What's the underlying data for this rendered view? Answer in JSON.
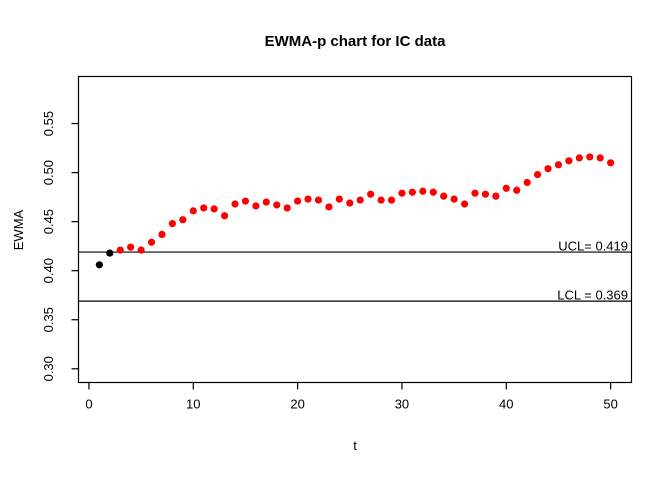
{
  "chart_data": {
    "type": "scatter",
    "title": "EWMA-p chart for IC data",
    "xlabel": "t",
    "ylabel": "EWMA",
    "x": [
      1,
      2,
      3,
      4,
      5,
      6,
      7,
      8,
      9,
      10,
      11,
      12,
      13,
      14,
      15,
      16,
      17,
      18,
      19,
      20,
      21,
      22,
      23,
      24,
      25,
      26,
      27,
      28,
      29,
      30,
      31,
      32,
      33,
      34,
      35,
      36,
      37,
      38,
      39,
      40,
      41,
      42,
      43,
      44,
      45,
      46,
      47,
      48,
      49,
      50
    ],
    "y": [
      0.406,
      0.418,
      0.421,
      0.424,
      0.421,
      0.429,
      0.437,
      0.448,
      0.452,
      0.461,
      0.464,
      0.463,
      0.456,
      0.468,
      0.471,
      0.466,
      0.47,
      0.467,
      0.464,
      0.471,
      0.473,
      0.472,
      0.465,
      0.473,
      0.469,
      0.472,
      0.478,
      0.472,
      0.472,
      0.479,
      0.48,
      0.481,
      0.48,
      0.476,
      0.473,
      0.468,
      0.479,
      0.478,
      0.476,
      0.484,
      0.482,
      0.49,
      0.498,
      0.504,
      0.508,
      0.512,
      0.515,
      0.516,
      0.515,
      0.51
    ],
    "black_point_count": 2,
    "xticks": [
      0,
      10,
      20,
      30,
      40,
      50
    ],
    "xtick_labels": [
      "0",
      "10",
      "20",
      "30",
      "40",
      "50"
    ],
    "yticks": [
      0.3,
      0.35,
      0.4,
      0.45,
      0.5,
      0.55
    ],
    "ytick_labels": [
      "0.30",
      "0.35",
      "0.40",
      "0.45",
      "0.50",
      "0.55"
    ],
    "xlim": [
      -1.0,
      52.0
    ],
    "ylim": [
      0.286,
      0.598
    ],
    "grid": false,
    "legend": "none",
    "control_limits": [
      {
        "name": "UCL",
        "value": 0.419,
        "label": "UCL= 0.419"
      },
      {
        "name": "LCL",
        "value": 0.369,
        "label": "LCL = 0.369"
      }
    ],
    "colors": {
      "point": "#ff0000",
      "initial_point": "#000000",
      "limit_line": "#000000",
      "axis": "#000000"
    }
  }
}
